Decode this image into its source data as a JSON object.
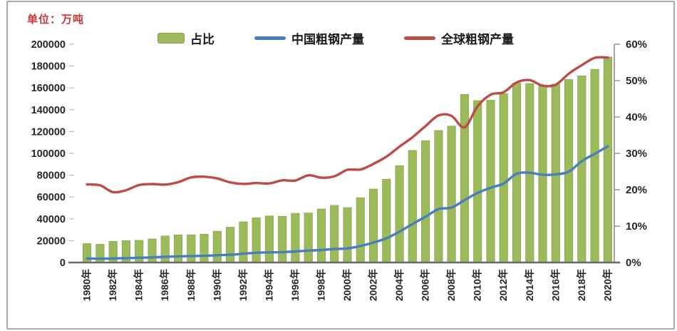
{
  "unit_label": "单位：万吨",
  "colors": {
    "bar_fill": "#9dba5b",
    "bar_border": "#84a147",
    "china_line": "#4a7ebb",
    "global_line": "#be4b48",
    "unit_label_text": "#cc3333",
    "axis_text": "#262626",
    "axis_line": "#8f8f8f",
    "baseline": "#686868",
    "card_border": "#a9a9a9"
  },
  "legend": {
    "items": [
      {
        "label": "占比",
        "type": "bar",
        "color": "#9dba5b"
      },
      {
        "label": "中国粗钢产量",
        "type": "line",
        "color": "#4a7ebb"
      },
      {
        "label": "全球粗钢产量",
        "type": "line",
        "color": "#be4b48"
      }
    ]
  },
  "chart_data": {
    "type": "combo",
    "title": "",
    "unit_note": "单位：万吨",
    "categories": [
      1980,
      1981,
      1982,
      1983,
      1984,
      1985,
      1986,
      1987,
      1988,
      1989,
      1990,
      1991,
      1992,
      1993,
      1994,
      1995,
      1996,
      1997,
      1998,
      1999,
      2000,
      2001,
      2002,
      2003,
      2004,
      2005,
      2006,
      2007,
      2008,
      2009,
      2010,
      2011,
      2012,
      2013,
      2014,
      2015,
      2016,
      2017,
      2018,
      2019,
      2020
    ],
    "x_tick_labels": [
      "1980年",
      "1982年",
      "1984年",
      "1986年",
      "1988年",
      "1990年",
      "1992年",
      "1994年",
      "1996年",
      "1998年",
      "2000年",
      "2002年",
      "2004年",
      "2006年",
      "2008年",
      "2010年",
      "2012年",
      "2014年",
      "2016年",
      "2018年",
      "2020年"
    ],
    "left_axis": {
      "min": 0,
      "max": 200000,
      "step": 20000,
      "labels": [
        "200000",
        "180000",
        "160000",
        "140000",
        "120000",
        "100000",
        "80000",
        "60000",
        "40000",
        "20000",
        "0"
      ]
    },
    "right_axis": {
      "min": 0,
      "max": 60,
      "step": 10,
      "labels": [
        "60%",
        "50%",
        "40%",
        "30%",
        "20%",
        "10%",
        "0%"
      ]
    },
    "grid": false,
    "legend_position": "top",
    "series": [
      {
        "name": "占比",
        "type": "bar",
        "axis": "right",
        "unit": "%",
        "values": [
          5.2,
          5.0,
          5.8,
          6.0,
          6.1,
          6.5,
          7.3,
          7.6,
          7.6,
          7.8,
          8.6,
          9.7,
          11.2,
          12.3,
          12.8,
          12.7,
          13.5,
          13.6,
          14.7,
          15.7,
          15.1,
          17.8,
          20.2,
          22.9,
          26.6,
          30.8,
          33.5,
          36.3,
          37.5,
          46.2,
          44.5,
          44.6,
          46.4,
          49.3,
          49.2,
          48.6,
          49.0,
          50.3,
          51.3,
          53.1,
          56.5
        ]
      },
      {
        "name": "中国粗钢产量",
        "type": "line",
        "axis": "left",
        "unit": "万吨",
        "values": [
          3712,
          3560,
          3716,
          4002,
          4347,
          4679,
          5221,
          5628,
          5943,
          6159,
          6635,
          7100,
          8094,
          8956,
          9261,
          9536,
          10124,
          10894,
          11459,
          12426,
          12850,
          15163,
          18225,
          22234,
          28291,
          35324,
          41915,
          48929,
          50306,
          57218,
          63723,
          68528,
          72388,
          81313,
          82231,
          80383,
          80761,
          83173,
          92826,
          99634,
          106477
        ]
      },
      {
        "name": "全球粗钢产量",
        "type": "line",
        "axis": "left",
        "unit": "万吨",
        "values": [
          71600,
          70700,
          64500,
          66300,
          71000,
          71900,
          71400,
          73600,
          78000,
          78600,
          77000,
          73400,
          72000,
          72800,
          72500,
          75300,
          75100,
          79900,
          77700,
          79000,
          85000,
          85200,
          90400,
          97000,
          106200,
          114800,
          125000,
          134800,
          134300,
          123900,
          143300,
          153800,
          156000,
          165000,
          167100,
          162000,
          162900,
          173000,
          180800,
          187500,
          187800
        ]
      }
    ]
  }
}
